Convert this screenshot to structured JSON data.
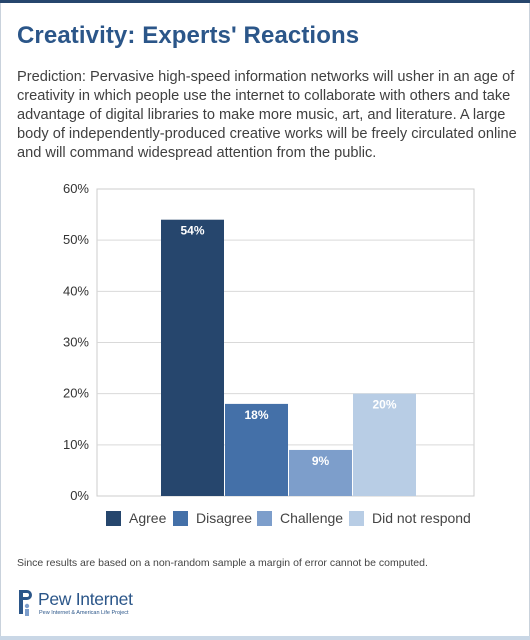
{
  "header": {
    "title": "Creativity: Experts' Reactions",
    "description": "Prediction: Pervasive high-speed information networks will usher in an age of creativity in which people use the internet to collaborate with others and take advantage of digital libraries to make more music, art, and literature. A large body of independently-produced creative works will be freely circulated online and will command widespread attention from the public."
  },
  "chart_data": {
    "type": "bar",
    "categories": [
      "Agree",
      "Disagree",
      "Challenge",
      "Did not respond"
    ],
    "values": [
      54,
      18,
      9,
      20
    ],
    "value_labels": [
      "54%",
      "18%",
      "9%",
      "20%"
    ],
    "colors": [
      "#26466d",
      "#4470a8",
      "#7d9ecb",
      "#b8cde5"
    ],
    "ylim": [
      0,
      60
    ],
    "yticks": [
      0,
      10,
      20,
      30,
      40,
      50,
      60
    ],
    "ytick_labels": [
      "0%",
      "10%",
      "20%",
      "30%",
      "40%",
      "50%",
      "60%"
    ],
    "grid": true,
    "legend_position": "bottom",
    "title": "",
    "xlabel": "",
    "ylabel": ""
  },
  "footnote": "Since results are based on a non-random sample a margin of error cannot be computed.",
  "logo": {
    "name": "Pew Internet",
    "tagline": "Pew Internet & American Life Project"
  }
}
